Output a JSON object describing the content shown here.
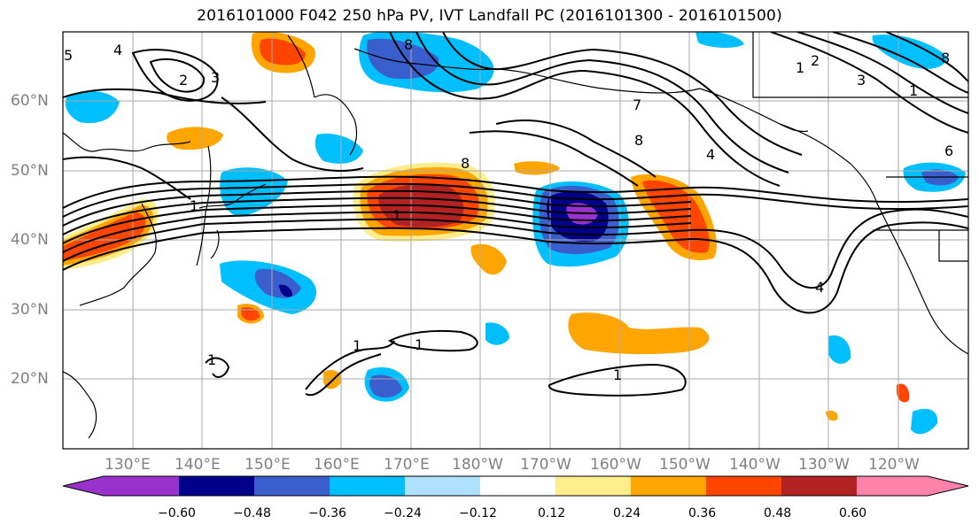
{
  "title": "2016101000 F042 250 hPa PV, IVT Landfall PC (2016101300 - 2016101500)",
  "lat_labels": [
    "60°N",
    "50°N",
    "40°N",
    "30°N",
    "20°N"
  ],
  "lon_labels": [
    "130°E",
    "140°E",
    "150°E",
    "160°E",
    "170°E",
    "180°W",
    "170°W",
    "160°W",
    "150°W",
    "140°W",
    "130°W",
    "120°W"
  ],
  "colorbar": {
    "ticks": [
      "−0.60",
      "−0.48",
      "−0.36",
      "−0.24",
      "−0.12",
      "0.12",
      "0.24",
      "0.36",
      "0.48",
      "0.60"
    ],
    "colors": [
      "#9932cc",
      "#00008b",
      "#3a5fcd",
      "#00bfff",
      "#b0e2ff",
      "#ffffff",
      "#ffec8b",
      "#ffa500",
      "#ff4500",
      "#b22222",
      "#ff82ab"
    ]
  },
  "contour_labels": [
    "5",
    "4",
    "3",
    "2",
    "1",
    "1",
    "8",
    "8",
    "7",
    "1",
    "2",
    "3",
    "4",
    "8",
    "1",
    "1",
    "1",
    "1",
    "4",
    "6",
    "8",
    "1"
  ]
}
